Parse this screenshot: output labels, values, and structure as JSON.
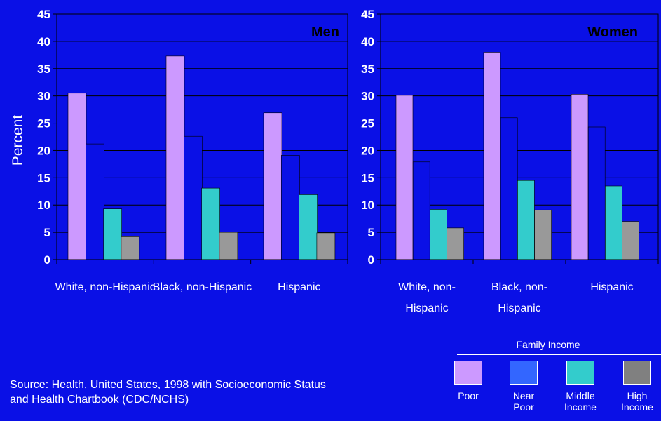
{
  "y_axis_label": "Percent",
  "legend": {
    "title": "Family Income",
    "items": [
      {
        "label": "Poor",
        "color": "#cc99ff"
      },
      {
        "label": "Near\nPoor",
        "color": "#3366ff"
      },
      {
        "label": "Middle\nIncome",
        "color": "#33cccc"
      },
      {
        "label": "High\nIncome",
        "color": "#808080"
      }
    ]
  },
  "source": "Source: Health, United States, 1998 with Socioeconomic Status\n and Health Chartbook (CDC/NCHS)",
  "chart_data": [
    {
      "type": "bar",
      "title": "Men",
      "ylabel": "Percent",
      "ylim": [
        0,
        45
      ],
      "yticks": [
        0,
        5,
        10,
        15,
        20,
        25,
        30,
        35,
        40,
        45
      ],
      "grid": true,
      "categories": [
        "White, non-Hispanic",
        "Black, non-Hispanic",
        "Hispanic"
      ],
      "category_label_lines": [
        [
          "White, non-Hispanic"
        ],
        [
          "Black, non-Hispanic"
        ],
        [
          "Hispanic"
        ]
      ],
      "series": [
        {
          "name": "Poor",
          "color": "#cc99ff",
          "values": [
            30.5,
            37.3,
            26.9
          ]
        },
        {
          "name": "Near Poor",
          "color": "#0a10e6",
          "values": [
            21.2,
            22.6,
            19.1
          ]
        },
        {
          "name": "Middle Income",
          "color": "#33cccc",
          "values": [
            9.3,
            13.1,
            11.9
          ]
        },
        {
          "name": "High Income",
          "color": "#999999",
          "values": [
            4.2,
            5.0,
            4.9
          ]
        }
      ]
    },
    {
      "type": "bar",
      "title": "Women",
      "ylim": [
        0,
        45
      ],
      "yticks": [
        0,
        5,
        10,
        15,
        20,
        25,
        30,
        35,
        40,
        45
      ],
      "grid": true,
      "categories": [
        "White, non-Hispanic",
        "Black, non-Hispanic",
        "Hispanic"
      ],
      "category_label_lines": [
        [
          "White, non-",
          "Hispanic"
        ],
        [
          "Black, non-",
          "Hispanic"
        ],
        [
          "Hispanic"
        ]
      ],
      "series": [
        {
          "name": "Poor",
          "color": "#cc99ff",
          "values": [
            30.1,
            38.0,
            30.3
          ]
        },
        {
          "name": "Near Poor",
          "color": "#0a10e6",
          "values": [
            17.9,
            26.0,
            24.3
          ]
        },
        {
          "name": "Middle Income",
          "color": "#33cccc",
          "values": [
            9.2,
            14.5,
            13.5
          ]
        },
        {
          "name": "High Income",
          "color": "#999999",
          "values": [
            5.8,
            9.1,
            7.0
          ]
        }
      ]
    }
  ]
}
